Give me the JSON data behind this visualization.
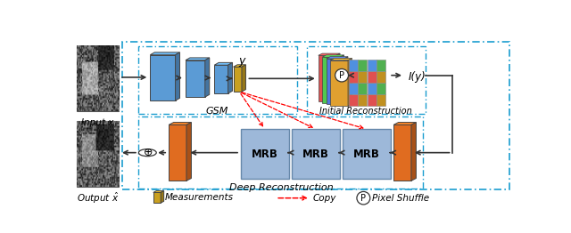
{
  "fig_width": 6.4,
  "fig_height": 2.62,
  "dpi": 100,
  "bg_color": "#ffffff",
  "input_label": "Input x",
  "output_label": "Output $\\hat{x}$",
  "gsm_label": "GSM",
  "init_label": "Initial Reconstruction",
  "deep_label": "Deep Reconstruction",
  "blue_color": "#5b9bd5",
  "orange_color": "#e06c20",
  "gold_color": "#c9a020",
  "mrb_color": "#9db8d9",
  "dashed_box_color": "#1a9dcf",
  "iy_label": "I(y)",
  "y_label": "y",
  "pixel_shuffle_label": "P"
}
